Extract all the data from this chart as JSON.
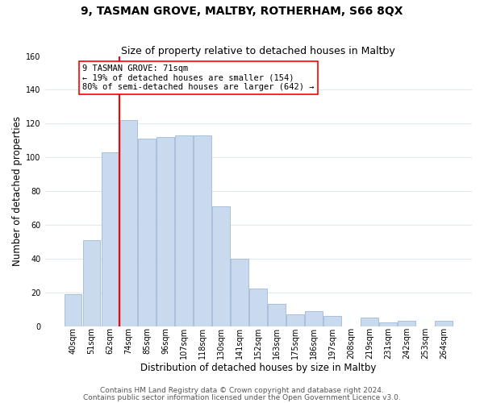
{
  "title": "9, TASMAN GROVE, MALTBY, ROTHERHAM, S66 8QX",
  "subtitle": "Size of property relative to detached houses in Maltby",
  "xlabel": "Distribution of detached houses by size in Maltby",
  "ylabel": "Number of detached properties",
  "bar_labels": [
    "40sqm",
    "51sqm",
    "62sqm",
    "74sqm",
    "85sqm",
    "96sqm",
    "107sqm",
    "118sqm",
    "130sqm",
    "141sqm",
    "152sqm",
    "163sqm",
    "175sqm",
    "186sqm",
    "197sqm",
    "208sqm",
    "219sqm",
    "231sqm",
    "242sqm",
    "253sqm",
    "264sqm"
  ],
  "bar_values": [
    19,
    51,
    103,
    122,
    111,
    112,
    113,
    113,
    71,
    40,
    22,
    13,
    7,
    9,
    6,
    0,
    5,
    2,
    3,
    0,
    3
  ],
  "bar_color": "#c9d9ee",
  "bar_edge_color": "#a8c0dc",
  "vline_x_index": 3,
  "vline_color": "red",
  "annotation_text": "9 TASMAN GROVE: 71sqm\n← 19% of detached houses are smaller (154)\n80% of semi-detached houses are larger (642) →",
  "annotation_box_color": "white",
  "annotation_box_edge": "red",
  "ylim": [
    0,
    160
  ],
  "yticks": [
    0,
    20,
    40,
    60,
    80,
    100,
    120,
    140,
    160
  ],
  "footer_line1": "Contains HM Land Registry data © Crown copyright and database right 2024.",
  "footer_line2": "Contains public sector information licensed under the Open Government Licence v3.0.",
  "bg_color": "#ffffff",
  "plot_bg_color": "#ffffff",
  "grid_color": "#e0e8f0",
  "title_fontsize": 10,
  "subtitle_fontsize": 9,
  "axis_label_fontsize": 8.5,
  "tick_fontsize": 7,
  "footer_fontsize": 6.5
}
